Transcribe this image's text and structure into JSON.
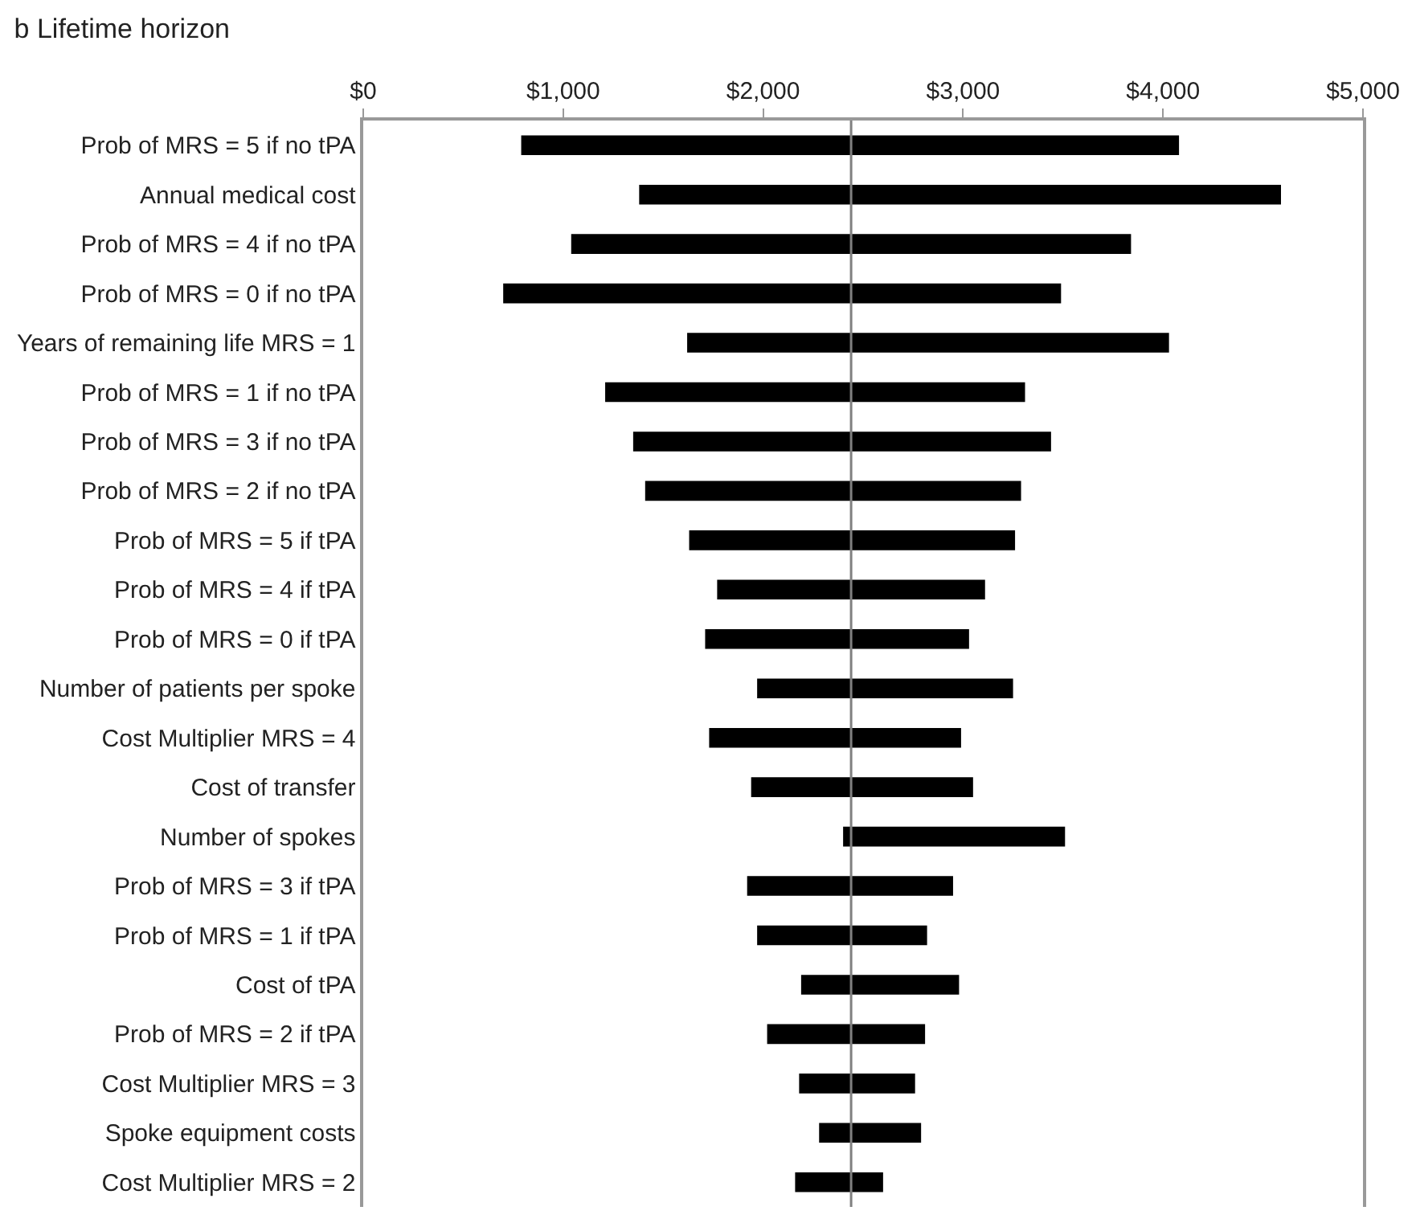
{
  "chart_data": {
    "type": "bar",
    "orientation": "horizontal",
    "title": "b Lifetime horizon",
    "categories": [
      "Prob of MRS = 5 if no tPA",
      "Annual medical cost",
      "Prob of MRS = 4 if no tPA",
      "Prob of MRS = 0 if no tPA",
      "Years of remaining life MRS = 1",
      "Prob of MRS = 1 if no tPA",
      "Prob of MRS = 3 if no tPA",
      "Prob of MRS = 2 if no tPA",
      "Prob of MRS = 5 if tPA",
      "Prob of MRS = 4 if tPA",
      "Prob of MRS = 0 if tPA",
      "Number of patients per spoke",
      "Cost Multiplier MRS = 4",
      "Cost of transfer",
      "Number of spokes",
      "Prob of MRS = 3 if tPA",
      "Prob of MRS = 1 if tPA",
      "Cost of tPA",
      "Prob of MRS = 2 if tPA",
      "Cost Multiplier MRS = 3",
      "Spoke equipment costs",
      "Cost Multiplier MRS = 2"
    ],
    "base": [
      790,
      1380,
      1040,
      700,
      1620,
      1210,
      1350,
      1410,
      1630,
      1770,
      1710,
      1970,
      1730,
      1940,
      2400,
      1920,
      1970,
      2190,
      2020,
      2180,
      2280,
      2160
    ],
    "values": [
      3290,
      3210,
      2800,
      2790,
      2410,
      2100,
      2090,
      1880,
      1630,
      1340,
      1320,
      1280,
      1260,
      1110,
      1110,
      1030,
      850,
      790,
      790,
      580,
      510,
      440
    ],
    "color": "#000000",
    "xlim": [
      0,
      5000
    ],
    "xticks": [
      {
        "value": 0,
        "label": "$0"
      },
      {
        "value": 1000,
        "label": "$1,000"
      },
      {
        "value": 2000,
        "label": "$2,000"
      },
      {
        "value": 3000,
        "label": "$3,000"
      },
      {
        "value": 4000,
        "label": "$4,000"
      },
      {
        "value": 5000,
        "label": "$5,000"
      }
    ],
    "ref_lines": [
      {
        "axis": "x",
        "value": 2440,
        "color": "#808080"
      }
    ],
    "legend": false
  }
}
